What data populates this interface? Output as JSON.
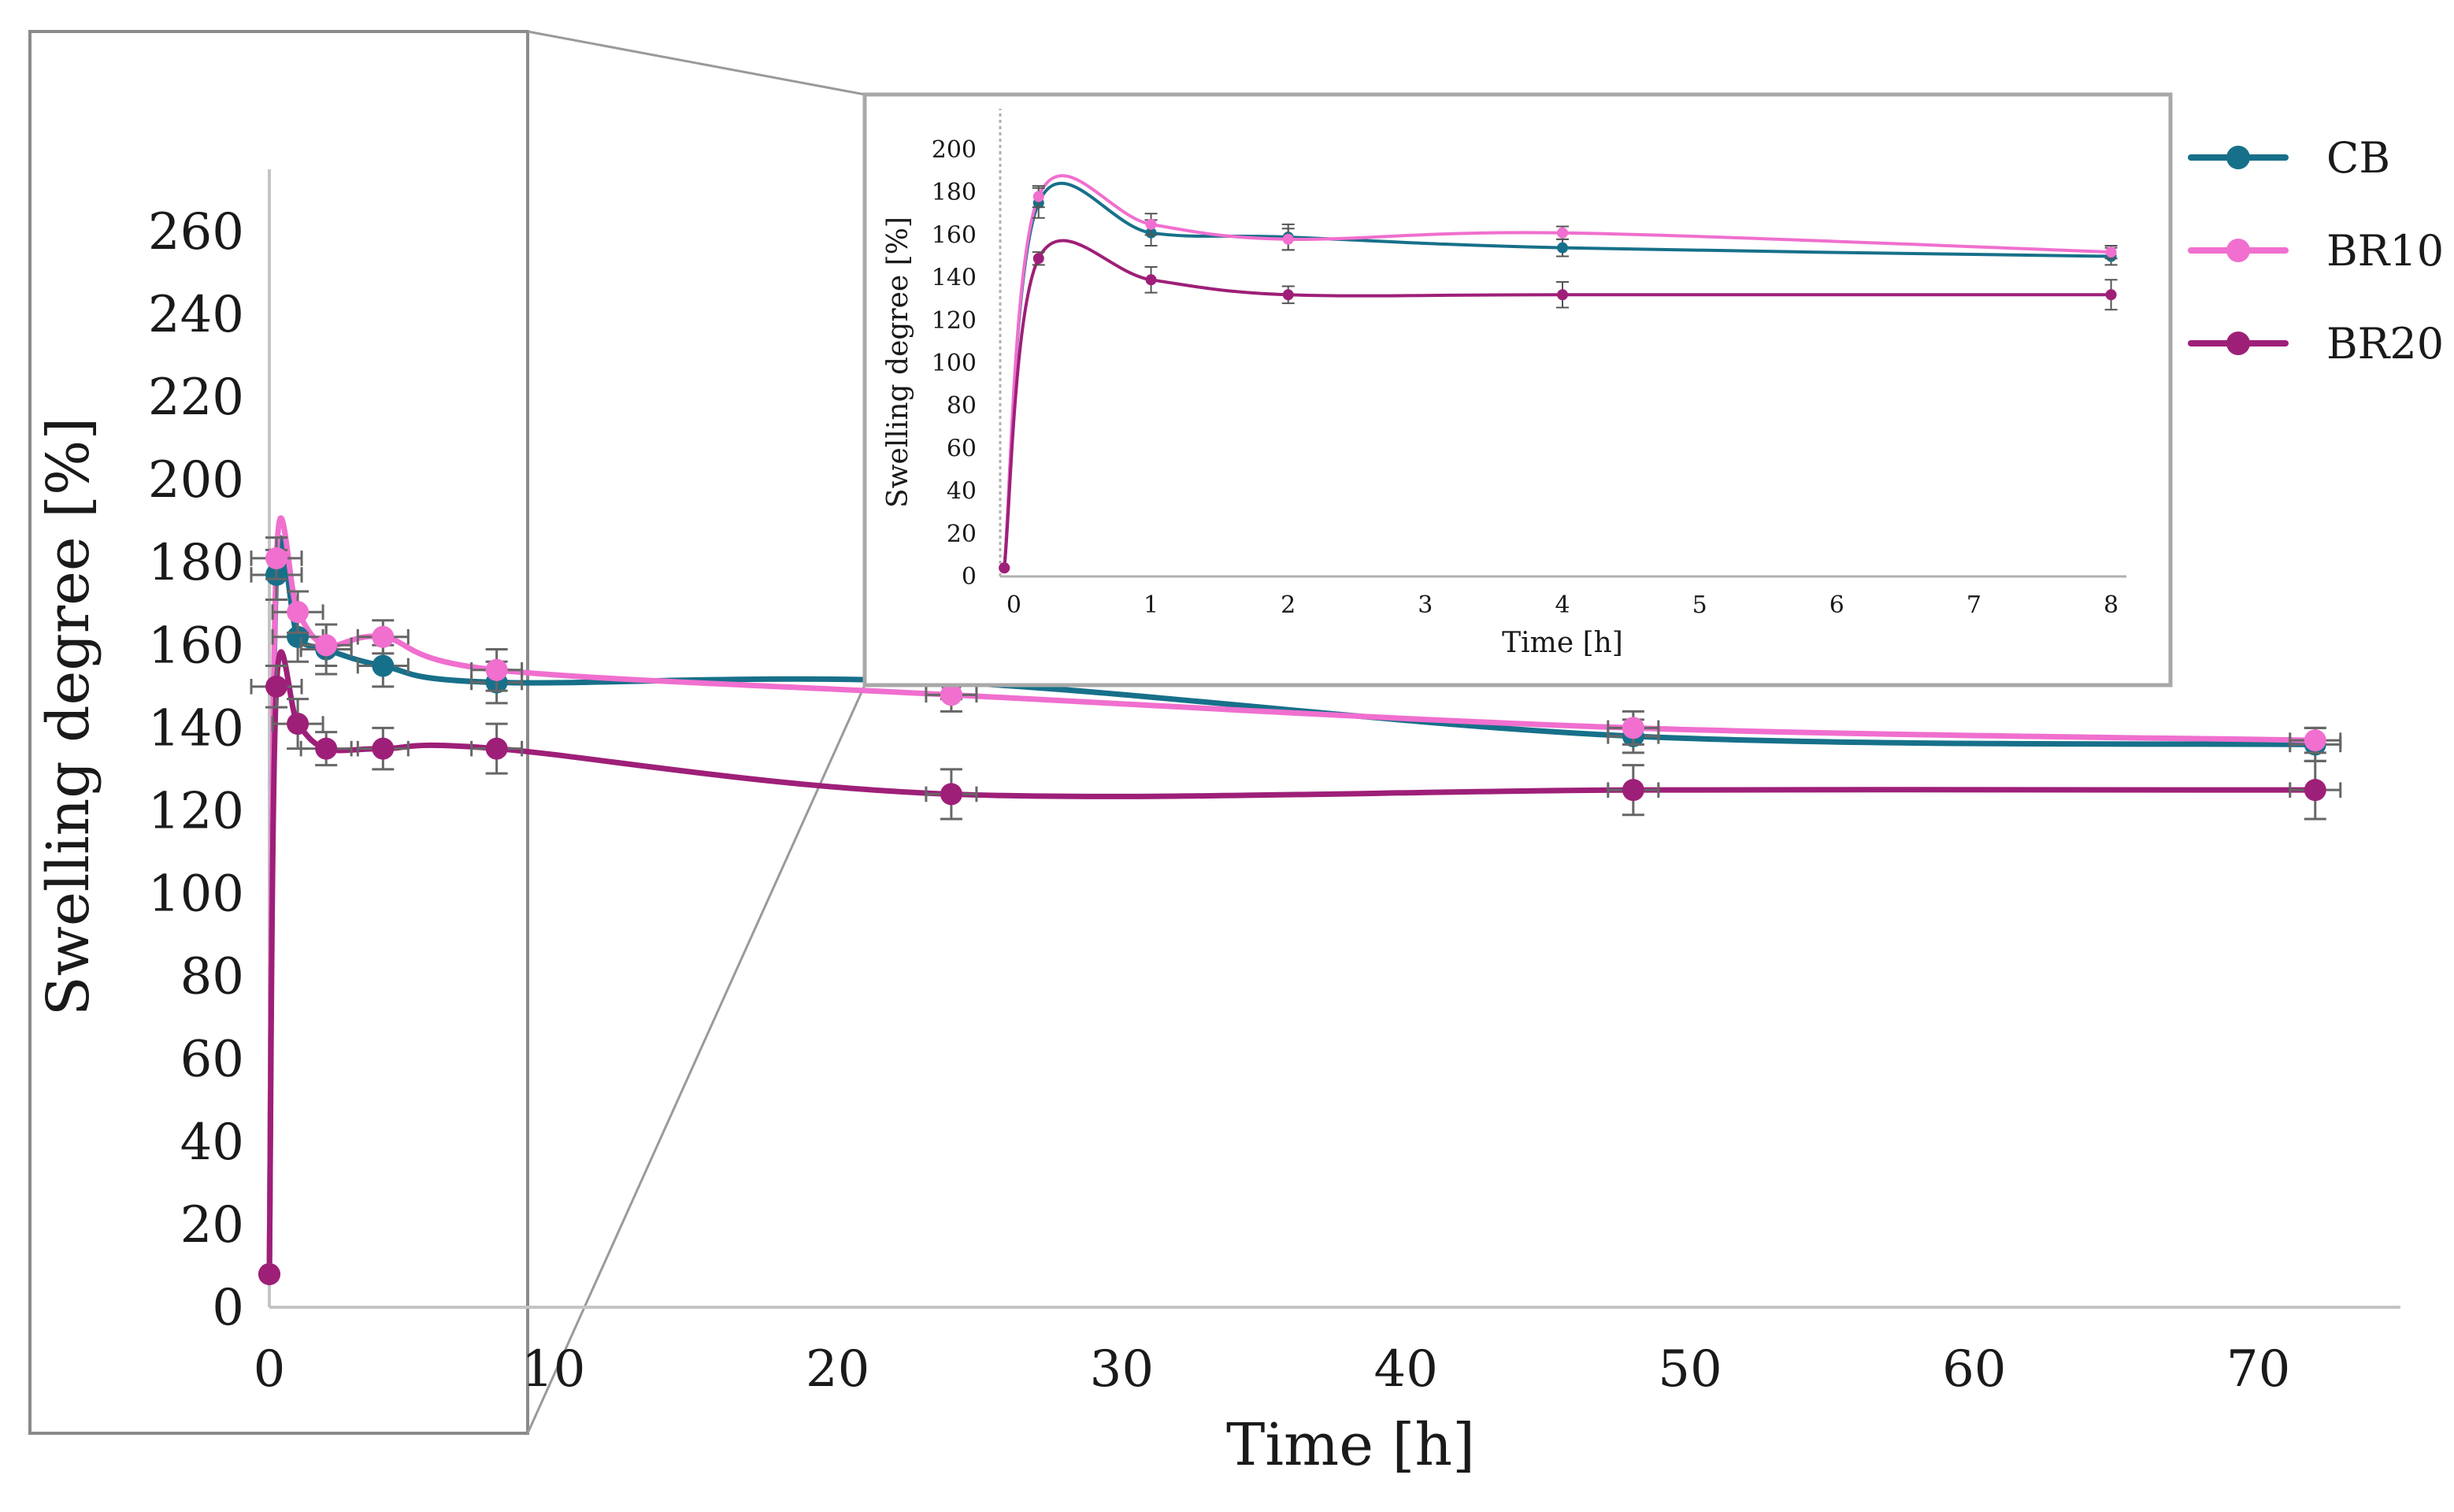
{
  "chart_data": [
    {
      "type": "line",
      "role": "main",
      "xlabel": "Time [h]",
      "ylabel": "Swelling degree [%]",
      "xlim": [
        0,
        75
      ],
      "ylim": [
        0,
        275
      ],
      "xticks": [
        0,
        10,
        20,
        30,
        40,
        50,
        60,
        70
      ],
      "yticks": [
        0,
        20,
        40,
        60,
        80,
        100,
        120,
        140,
        160,
        180,
        200,
        220,
        240,
        260
      ],
      "grid": false,
      "legend_placement": "right",
      "series": [
        {
          "name": "CB",
          "color": "#17708a",
          "x": [
            0,
            0.25,
            1,
            2,
            4,
            8,
            24,
            48,
            72
          ],
          "y": [
            8,
            177,
            162,
            159,
            155,
            151,
            151,
            138,
            136
          ],
          "yerr": [
            0,
            6,
            6,
            6,
            5,
            5,
            4,
            4,
            4
          ]
        },
        {
          "name": "BR10",
          "color": "#f06fcf",
          "x": [
            0,
            0.25,
            1,
            2,
            4,
            8,
            24,
            48,
            72
          ],
          "y": [
            8,
            181,
            168,
            160,
            162,
            154,
            148,
            140,
            137
          ],
          "yerr": [
            0,
            5,
            5,
            5,
            4,
            5,
            4,
            4,
            3
          ]
        },
        {
          "name": "BR20",
          "color": "#9e1f78",
          "x": [
            0,
            0.25,
            1,
            2,
            4,
            8,
            24,
            48,
            72
          ],
          "y": [
            8,
            150,
            141,
            135,
            135,
            135,
            124,
            125,
            125
          ],
          "yerr": [
            0,
            5,
            6,
            4,
            5,
            6,
            6,
            6,
            7
          ]
        }
      ]
    },
    {
      "type": "line",
      "role": "inset",
      "xlabel": "Time [h]",
      "ylabel": "Swelling degree [%]",
      "xlim": [
        -0.1,
        8.1
      ],
      "ylim": [
        0,
        200
      ],
      "xticks": [
        0,
        1,
        2,
        3,
        4,
        5,
        6,
        7,
        8
      ],
      "yticks": [
        0,
        20,
        40,
        60,
        80,
        100,
        120,
        140,
        160,
        180,
        200
      ],
      "grid": false,
      "series": [
        {
          "name": "CB",
          "color": "#17708a",
          "x": [
            -0.07,
            0.18,
            1,
            2,
            4,
            8
          ],
          "y": [
            4,
            175,
            161,
            159,
            154,
            150
          ],
          "yerr": [
            0,
            7,
            6,
            6,
            4,
            4
          ]
        },
        {
          "name": "BR10",
          "color": "#f06fcf",
          "x": [
            -0.07,
            0.18,
            1,
            2,
            4,
            8
          ],
          "y": [
            4,
            178,
            165,
            158,
            161,
            152
          ],
          "yerr": [
            0,
            5,
            5,
            5,
            3,
            3
          ]
        },
        {
          "name": "BR20",
          "color": "#9e1f78",
          "x": [
            -0.07,
            0.18,
            1,
            2,
            4,
            8
          ],
          "y": [
            4,
            149,
            139,
            132,
            132,
            132
          ],
          "yerr": [
            0,
            3,
            6,
            4,
            6,
            7
          ]
        }
      ]
    }
  ]
}
